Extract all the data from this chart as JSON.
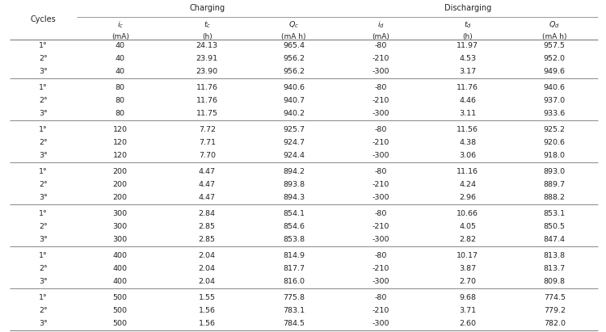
{
  "title_charging": "Charging",
  "title_discharging": "Discharging",
  "col_labels_main": [
    "i_c",
    "t_c",
    "Q_c",
    "i_d",
    "t_d",
    "Q_d"
  ],
  "col_labels_sub": [
    "(mA)",
    "(h)",
    "(mA h)",
    "(mA)",
    "(h)",
    "(mA h)"
  ],
  "col_label_letters": [
    "i",
    "t",
    "Q",
    "i",
    "t",
    "Q"
  ],
  "col_label_subs": [
    "c",
    "c",
    "c",
    "d",
    "d",
    "d"
  ],
  "groups": [
    {
      "rows": [
        {
          "cycle": "1°",
          "ic": 40,
          "tc": 24.13,
          "Qc": 965.4,
          "id_val": -80,
          "td": 11.97,
          "Qd": 957.5
        },
        {
          "cycle": "2°",
          "ic": 40,
          "tc": 23.91,
          "Qc": 956.2,
          "id_val": -210,
          "td": 4.53,
          "Qd": 952.0
        },
        {
          "cycle": "3°",
          "ic": 40,
          "tc": 23.9,
          "Qc": 956.2,
          "id_val": -300,
          "td": 3.17,
          "Qd": 949.6
        }
      ]
    },
    {
      "rows": [
        {
          "cycle": "1°",
          "ic": 80,
          "tc": 11.76,
          "Qc": 940.6,
          "id_val": -80,
          "td": 11.76,
          "Qd": 940.6
        },
        {
          "cycle": "2°",
          "ic": 80,
          "tc": 11.76,
          "Qc": 940.7,
          "id_val": -210,
          "td": 4.46,
          "Qd": 937.0
        },
        {
          "cycle": "3°",
          "ic": 80,
          "tc": 11.75,
          "Qc": 940.2,
          "id_val": -300,
          "td": 3.11,
          "Qd": 933.6
        }
      ]
    },
    {
      "rows": [
        {
          "cycle": "1°",
          "ic": 120,
          "tc": 7.72,
          "Qc": 925.7,
          "id_val": -80,
          "td": 11.56,
          "Qd": 925.2
        },
        {
          "cycle": "2°",
          "ic": 120,
          "tc": 7.71,
          "Qc": 924.7,
          "id_val": -210,
          "td": 4.38,
          "Qd": 920.6
        },
        {
          "cycle": "3°",
          "ic": 120,
          "tc": 7.7,
          "Qc": 924.4,
          "id_val": -300,
          "td": 3.06,
          "Qd": 918.0
        }
      ]
    },
    {
      "rows": [
        {
          "cycle": "1°",
          "ic": 200,
          "tc": 4.47,
          "Qc": 894.2,
          "id_val": -80,
          "td": 11.16,
          "Qd": 893.0
        },
        {
          "cycle": "2°",
          "ic": 200,
          "tc": 4.47,
          "Qc": 893.8,
          "id_val": -210,
          "td": 4.24,
          "Qd": 889.7
        },
        {
          "cycle": "3°",
          "ic": 200,
          "tc": 4.47,
          "Qc": 894.3,
          "id_val": -300,
          "td": 2.96,
          "Qd": 888.2
        }
      ]
    },
    {
      "rows": [
        {
          "cycle": "1°",
          "ic": 300,
          "tc": 2.84,
          "Qc": 854.1,
          "id_val": -80,
          "td": 10.66,
          "Qd": 853.1
        },
        {
          "cycle": "2°",
          "ic": 300,
          "tc": 2.85,
          "Qc": 854.6,
          "id_val": -210,
          "td": 4.05,
          "Qd": 850.5
        },
        {
          "cycle": "3°",
          "ic": 300,
          "tc": 2.85,
          "Qc": 853.8,
          "id_val": -300,
          "td": 2.82,
          "Qd": 847.4
        }
      ]
    },
    {
      "rows": [
        {
          "cycle": "1°",
          "ic": 400,
          "tc": 2.04,
          "Qc": 814.9,
          "id_val": -80,
          "td": 10.17,
          "Qd": 813.8
        },
        {
          "cycle": "2°",
          "ic": 400,
          "tc": 2.04,
          "Qc": 817.7,
          "id_val": -210,
          "td": 3.87,
          "Qd": 813.7
        },
        {
          "cycle": "3°",
          "ic": 400,
          "tc": 2.04,
          "Qc": 816.0,
          "id_val": -300,
          "td": 2.7,
          "Qd": 809.8
        }
      ]
    },
    {
      "rows": [
        {
          "cycle": "1°",
          "ic": 500,
          "tc": 1.55,
          "Qc": 775.8,
          "id_val": -80,
          "td": 9.68,
          "Qd": 774.5
        },
        {
          "cycle": "2°",
          "ic": 500,
          "tc": 1.56,
          "Qc": 783.1,
          "id_val": -210,
          "td": 3.71,
          "Qd": 779.2
        },
        {
          "cycle": "3°",
          "ic": 500,
          "tc": 1.56,
          "Qc": 784.5,
          "id_val": -300,
          "td": 2.6,
          "Qd": 782.0
        }
      ]
    }
  ],
  "bg_color": "#ffffff",
  "text_color": "#222222",
  "line_color": "#888888",
  "figw": 7.5,
  "figh": 4.11,
  "dpi": 100
}
